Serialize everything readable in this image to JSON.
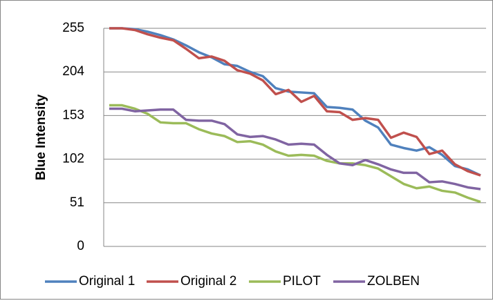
{
  "chart_data": {
    "type": "line",
    "ylabel": "Blue Intensity",
    "categories": [
      null,
      null,
      null,
      null,
      null,
      null,
      null,
      null,
      null,
      null,
      null,
      null,
      null,
      null,
      null,
      null,
      null,
      null,
      null,
      null,
      null,
      null,
      null,
      null,
      null,
      null,
      null,
      null,
      null,
      null
    ],
    "ylim": [
      0,
      255
    ],
    "yticks": [
      0,
      51,
      102,
      153,
      204,
      255
    ],
    "grid": true,
    "legend": "bottom",
    "series": [
      {
        "name": "Original 1",
        "color": "#4f81bd",
        "values": [
          255,
          255,
          254,
          251,
          247,
          242,
          235,
          227,
          221,
          213,
          211,
          204,
          199,
          185,
          181,
          180,
          179,
          163,
          162,
          160,
          147,
          139,
          119,
          115,
          112,
          116,
          107,
          94,
          90,
          83
        ]
      },
      {
        "name": "Original 2",
        "color": "#c0504d",
        "values": [
          255,
          255,
          253,
          248,
          244,
          241,
          231,
          220,
          222,
          217,
          206,
          202,
          194,
          178,
          183,
          169,
          176,
          158,
          157,
          148,
          150,
          148,
          127,
          133,
          128,
          108,
          112,
          96,
          88,
          83
        ]
      },
      {
        "name": "PILOT",
        "color": "#9bbb59",
        "values": [
          165,
          165,
          161,
          155,
          145,
          144,
          144,
          137,
          132,
          129,
          122,
          123,
          119,
          111,
          106,
          107,
          106,
          100,
          97,
          97,
          95,
          91,
          82,
          73,
          68,
          70,
          65,
          63,
          57,
          52
        ]
      },
      {
        "name": "ZOLBEN",
        "color": "#8064a2",
        "values": [
          161,
          161,
          158,
          159,
          160,
          160,
          148,
          147,
          147,
          143,
          131,
          128,
          129,
          125,
          119,
          120,
          119,
          107,
          97,
          95,
          101,
          96,
          90,
          86,
          86,
          75,
          76,
          73,
          69,
          67
        ]
      }
    ]
  }
}
